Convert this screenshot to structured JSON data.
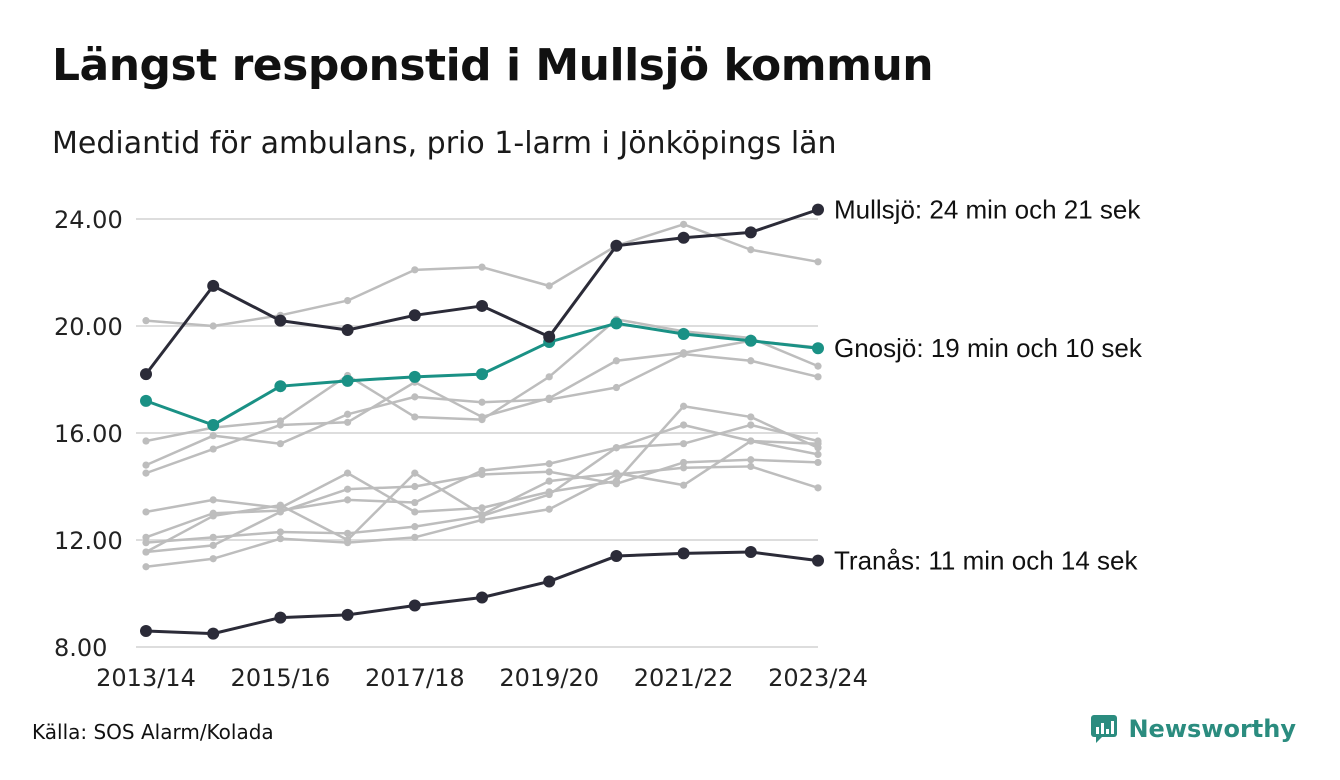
{
  "title": "Längst responstid i Mullsjö kommun",
  "subtitle": "Mediantid för ambulans, prio 1-larm i Jönköpings län",
  "source": "Källa: SOS Alarm/Kolada",
  "brand": {
    "name": "Newsworthy",
    "icon": "newsworthy-logo-icon",
    "color": "#2b8c7f"
  },
  "colors": {
    "highlight_dark": "#2b2b38",
    "highlight_teal": "#1a9185",
    "background_lines": "#bdbdbd",
    "grid": "#dddddd"
  },
  "chart_data": {
    "type": "line",
    "x": [
      "2013/14",
      "2014/15",
      "2015/16",
      "2016/17",
      "2017/18",
      "2018/19",
      "2019/20",
      "2020/21",
      "2021/22",
      "2022/23",
      "2023/24"
    ],
    "x_tick_labels": [
      "2013/14",
      "2015/16",
      "2017/18",
      "2019/20",
      "2021/22",
      "2023/24"
    ],
    "y_ticks": [
      "8.00",
      "12.00",
      "16.00",
      "20.00",
      "24.00"
    ],
    "ylim": [
      8,
      24.35
    ],
    "grid": true,
    "highlighted_series": [
      {
        "name": "Mullsjö",
        "label": "Mullsjö: 24 min och 21 sek",
        "color": "#2b2b38",
        "values": [
          18.2,
          21.5,
          20.2,
          19.85,
          20.4,
          20.75,
          19.6,
          23.0,
          23.3,
          23.5,
          24.35
        ]
      },
      {
        "name": "Gnosjö",
        "label": "Gnosjö: 19 min och 10 sek",
        "color": "#1a9185",
        "values": [
          17.2,
          16.3,
          17.75,
          17.95,
          18.1,
          18.2,
          19.4,
          20.1,
          19.7,
          19.45,
          19.17
        ]
      },
      {
        "name": "Tranås",
        "label": "Tranås: 11 min och 14 sek",
        "color": "#2b2b38",
        "values": [
          8.6,
          8.5,
          9.1,
          9.2,
          9.55,
          9.85,
          10.45,
          11.4,
          11.5,
          11.55,
          11.23
        ]
      }
    ],
    "background_series": [
      {
        "values": [
          20.2,
          20.0,
          20.4,
          20.95,
          22.1,
          22.2,
          21.5,
          23.0,
          23.8,
          22.85,
          22.4
        ]
      },
      {
        "values": [
          15.7,
          16.2,
          16.45,
          18.15,
          16.6,
          16.5,
          18.1,
          20.25,
          19.8,
          19.55,
          18.5
        ]
      },
      {
        "values": [
          14.5,
          15.4,
          16.3,
          16.4,
          17.9,
          16.6,
          17.3,
          18.7,
          19.0,
          19.45,
          19.2
        ]
      },
      {
        "values": [
          14.8,
          15.9,
          15.6,
          16.7,
          17.35,
          17.15,
          17.25,
          17.7,
          18.95,
          18.7,
          18.1
        ]
      },
      {
        "values": [
          13.05,
          13.5,
          13.2,
          14.5,
          13.05,
          13.2,
          13.8,
          14.2,
          17.0,
          16.6,
          15.45
        ]
      },
      {
        "values": [
          12.1,
          13.0,
          13.1,
          13.5,
          13.4,
          14.6,
          14.85,
          15.45,
          15.6,
          16.3,
          15.7
        ]
      },
      {
        "values": [
          11.9,
          12.1,
          12.3,
          12.25,
          12.5,
          12.9,
          13.7,
          15.45,
          16.3,
          15.7,
          15.2
        ]
      },
      {
        "values": [
          11.55,
          12.9,
          13.3,
          12.0,
          14.5,
          12.95,
          14.2,
          14.5,
          14.05,
          15.7,
          15.6
        ]
      },
      {
        "values": [
          11.0,
          11.3,
          12.05,
          11.9,
          12.1,
          12.75,
          13.15,
          14.45,
          14.7,
          14.75,
          13.95
        ]
      },
      {
        "values": [
          11.55,
          11.8,
          13.05,
          13.9,
          14.0,
          14.45,
          14.55,
          14.1,
          14.9,
          15.0,
          14.9
        ]
      }
    ]
  }
}
